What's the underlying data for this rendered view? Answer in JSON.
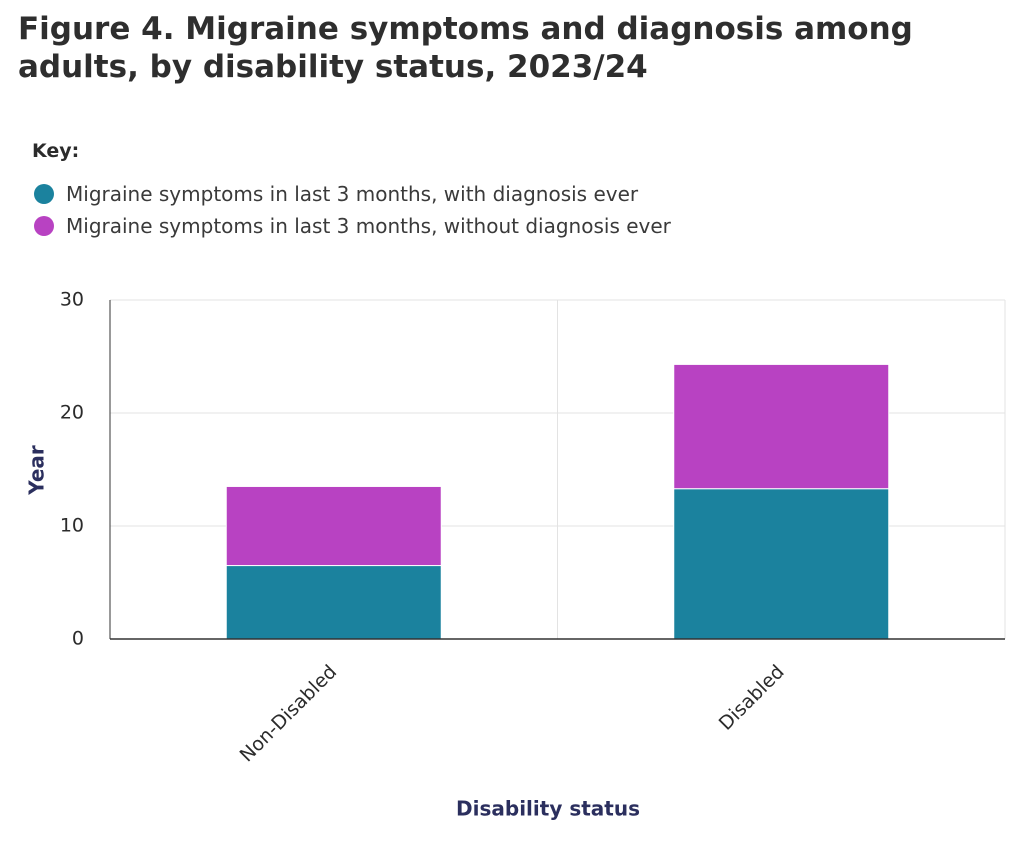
{
  "chart_data": {
    "type": "stacked_bar",
    "title": "Figure 4. Migraine symptoms and diagnosis among adults, by disability status, 2023/24",
    "legend_title": "Key:",
    "x_label": "Disability status",
    "y_label": "Year",
    "categories": [
      "Non-Disabled",
      "Disabled"
    ],
    "series": [
      {
        "name": "Migraine symptoms in last 3 months, with diagnosis ever",
        "color": "#1b829e",
        "values": [
          6.5,
          13.3
        ]
      },
      {
        "name": "Migraine symptoms in last 3 months, without diagnosis ever",
        "color": "#b842c2",
        "values": [
          7.0,
          11.0
        ]
      }
    ],
    "ylim": [
      0,
      30
    ],
    "yticks": [
      0,
      10,
      20,
      30
    ],
    "grid": true
  }
}
